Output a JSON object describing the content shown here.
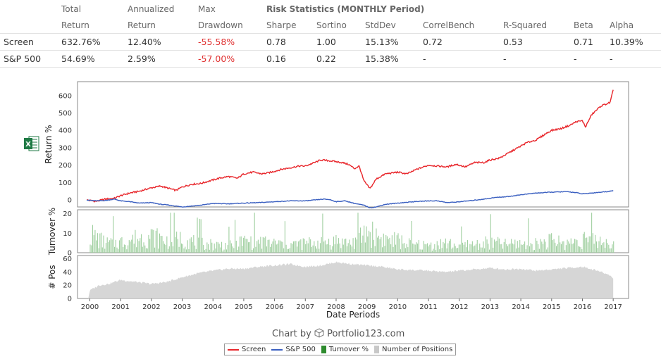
{
  "stats_table": {
    "columns": [
      {
        "line1": "",
        "line2": ""
      },
      {
        "line1": "Total",
        "line2": "Return"
      },
      {
        "line1": "Annualized",
        "line2": "Return"
      },
      {
        "line1": "Max",
        "line2": "Drawdown"
      },
      {
        "line1": "Risk Statistics (MONTHLY Period)",
        "line2": "Sharpe"
      },
      {
        "line1": "",
        "line2": "Sortino"
      },
      {
        "line1": "",
        "line2": "StdDev"
      },
      {
        "line1": "",
        "line2": "CorrelBench"
      },
      {
        "line1": "",
        "line2": "R-Squared"
      },
      {
        "line1": "",
        "line2": "Beta"
      },
      {
        "line1": "",
        "line2": "Alpha"
      }
    ],
    "rows": [
      {
        "name": "Screen",
        "values": [
          "632.76%",
          "12.40%",
          "-55.58%",
          "0.78",
          "1.00",
          "15.13%",
          "0.72",
          "0.53",
          "0.71",
          "10.39%"
        ]
      },
      {
        "name": "S&P 500",
        "values": [
          "54.69%",
          "2.59%",
          "-57.00%",
          "0.16",
          "0.22",
          "15.38%",
          "-",
          "-",
          "-",
          "-"
        ]
      }
    ]
  },
  "credit": {
    "prefix": "Chart by",
    "brand": "Portfolio123.com"
  },
  "export_icon": "excel-export-icon",
  "colors": {
    "screen": "#e8262b",
    "sp500": "#3a5fc0",
    "turnover": "#9fcf9f",
    "positions": "#d6d6d6",
    "negative": "#e03030"
  },
  "chart_data": {
    "type": "line",
    "xlabel": "Date Periods",
    "x_ticks": [
      "2000",
      "2001",
      "2002",
      "2003",
      "2004",
      "2005",
      "2006",
      "2007",
      "2008",
      "2009",
      "2010",
      "2011",
      "2012",
      "2013",
      "2014",
      "2015",
      "2016",
      "2017"
    ],
    "panels": [
      {
        "id": "returns",
        "ylabel": "Return %",
        "ylim": [
          -40,
          680
        ],
        "yticks": [
          0,
          100,
          200,
          300,
          400,
          500,
          600
        ],
        "series": [
          {
            "name": "Screen",
            "color": "#e8262b",
            "type": "line",
            "x": [
              1999.9,
              2000.2,
              2000.5,
              2000.8,
              2001.0,
              2001.3,
              2001.6,
              2002.0,
              2002.3,
              2002.6,
              2002.8,
              2003.0,
              2003.3,
              2003.6,
              2003.9,
              2004.2,
              2004.5,
              2004.8,
              2005.0,
              2005.3,
              2005.6,
              2005.9,
              2006.2,
              2006.5,
              2006.8,
              2007.0,
              2007.3,
              2007.5,
              2007.8,
              2008.0,
              2008.2,
              2008.4,
              2008.6,
              2008.75,
              2008.9,
              2009.1,
              2009.3,
              2009.6,
              2010.0,
              2010.3,
              2010.6,
              2011.0,
              2011.3,
              2011.6,
              2011.9,
              2012.2,
              2012.5,
              2012.8,
              2013.0,
              2013.3,
              2013.6,
              2013.9,
              2014.2,
              2014.5,
              2014.8,
              2015.0,
              2015.3,
              2015.6,
              2015.8,
              2016.0,
              2016.1,
              2016.3,
              2016.6,
              2016.9,
              2017.0
            ],
            "values": [
              0,
              -8,
              5,
              10,
              25,
              40,
              50,
              70,
              80,
              65,
              55,
              75,
              90,
              95,
              110,
              125,
              135,
              125,
              150,
              160,
              150,
              160,
              175,
              185,
              195,
              195,
              215,
              230,
              225,
              220,
              215,
              205,
              180,
              195,
              110,
              65,
              120,
              150,
              160,
              150,
              175,
              200,
              195,
              190,
              205,
              190,
              215,
              215,
              230,
              240,
              270,
              300,
              330,
              345,
              380,
              400,
              410,
              430,
              450,
              455,
              420,
              490,
              540,
              560,
              633
            ]
          },
          {
            "name": "S&P 500",
            "color": "#3a5fc0",
            "type": "line",
            "x": [
              1999.9,
              2000.2,
              2000.5,
              2000.8,
              2001.0,
              2001.3,
              2001.6,
              2002.0,
              2002.3,
              2002.6,
              2002.8,
              2003.0,
              2003.3,
              2003.6,
              2004.0,
              2004.5,
              2005.0,
              2005.5,
              2006.0,
              2006.5,
              2007.0,
              2007.3,
              2007.6,
              2007.8,
              2008.0,
              2008.3,
              2008.6,
              2008.9,
              2009.1,
              2009.3,
              2009.6,
              2010.0,
              2010.5,
              2011.0,
              2011.3,
              2011.6,
              2011.9,
              2012.3,
              2012.8,
              2013.2,
              2013.6,
              2014.0,
              2014.5,
              2015.0,
              2015.5,
              2015.8,
              2016.0,
              2016.3,
              2016.6,
              2016.9,
              2017.0
            ],
            "values": [
              0,
              -5,
              -3,
              5,
              -5,
              -10,
              -18,
              -15,
              -25,
              -30,
              -35,
              -40,
              -35,
              -30,
              -20,
              -22,
              -18,
              -15,
              -10,
              -5,
              -5,
              0,
              5,
              2,
              -10,
              -5,
              -20,
              -30,
              -45,
              -40,
              -25,
              -18,
              -10,
              -5,
              -5,
              -15,
              -12,
              -5,
              5,
              15,
              20,
              30,
              40,
              45,
              48,
              42,
              35,
              40,
              45,
              50,
              55
            ]
          }
        ]
      },
      {
        "id": "turnover",
        "ylabel": "Turnover %",
        "ylim": [
          0,
          22
        ],
        "yticks": [
          0,
          10,
          20
        ],
        "series": [
          {
            "name": "Turnover %",
            "color": "#9fcf9f",
            "type": "bar",
            "note": "dense weekly bars, typical 2-8%, peaks near 20%",
            "x": [
              2000.0,
              2000.5,
              2001.0,
              2001.5,
              2002.0,
              2002.5,
              2003.0,
              2003.5,
              2004.0,
              2004.5,
              2005.0,
              2005.5,
              2006.0,
              2006.5,
              2007.0,
              2007.5,
              2008.0,
              2008.5,
              2009.0,
              2009.5,
              2010.0,
              2010.5,
              2011.0,
              2011.5,
              2012.0,
              2012.5,
              2013.0,
              2013.5,
              2014.0,
              2014.5,
              2015.0,
              2015.5,
              2016.0,
              2016.5,
              2017.0
            ],
            "values": [
              16,
              8,
              9,
              12,
              14,
              10,
              12,
              8,
              7,
              6,
              10,
              9,
              8,
              7,
              8,
              9,
              10,
              8,
              18,
              12,
              10,
              7,
              6,
              8,
              6,
              7,
              9,
              7,
              8,
              8,
              10,
              8,
              12,
              10,
              8
            ]
          }
        ]
      },
      {
        "id": "positions",
        "ylabel": "# Pos",
        "ylim": [
          0,
          65
        ],
        "yticks": [
          0,
          20,
          40,
          60
        ],
        "series": [
          {
            "name": "Number of Positions",
            "color": "#d6d6d6",
            "type": "area",
            "x": [
              1999.95,
              2000.0,
              2000.3,
              2000.6,
              2001.0,
              2001.5,
              2002.0,
              2002.5,
              2003.0,
              2003.5,
              2004.0,
              2004.5,
              2005.0,
              2005.5,
              2006.0,
              2006.5,
              2007.0,
              2007.5,
              2008.0,
              2008.5,
              2009.0,
              2009.5,
              2010.0,
              2010.5,
              2011.0,
              2011.5,
              2012.0,
              2012.5,
              2013.0,
              2013.5,
              2014.0,
              2014.5,
              2015.0,
              2015.5,
              2016.0,
              2016.5,
              2016.9,
              2017.0
            ],
            "values": [
              0,
              12,
              20,
              22,
              28,
              25,
              22,
              25,
              32,
              38,
              42,
              45,
              45,
              48,
              50,
              52,
              48,
              50,
              55,
              52,
              50,
              48,
              44,
              43,
              42,
              40,
              42,
              44,
              46,
              44,
              45,
              42,
              44,
              46,
              48,
              42,
              35,
              30
            ]
          }
        ]
      }
    ],
    "legend": {
      "placement": "bottom-center",
      "items": [
        "Screen",
        "S&P 500",
        "Turnover %",
        "Number of Positions"
      ]
    }
  }
}
